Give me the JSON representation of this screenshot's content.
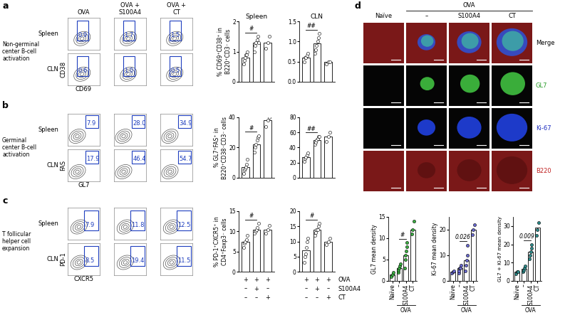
{
  "panel_labels": [
    "a",
    "b",
    "c",
    "d"
  ],
  "flow": {
    "columns": [
      "OVA",
      "OVA +\nS100A4",
      "OVA +\nCT"
    ],
    "rows": [
      "Spleen",
      "CLN"
    ],
    "sections": [
      {
        "title": "Non-germinal\ncenter B-cell\nactivation",
        "x_label": "CD69",
        "y_label": "CD38",
        "gates": [
          [
            0.9,
            1.7,
            1.5
          ],
          [
            0.6,
            1.0,
            0.5
          ]
        ]
      },
      {
        "title": "Germinal\ncenter B-cell\nactivation",
        "x_label": "GL7",
        "y_label": "FAS",
        "gates": [
          [
            7.9,
            28.0,
            34.9
          ],
          [
            17.9,
            46.4,
            54.7
          ]
        ]
      },
      {
        "title": "T follicular\nhelper cell\nexpansion",
        "x_label": "CXCR5",
        "y_label": "PD-1",
        "gates": [
          [
            7.9,
            11.8,
            12.5
          ],
          [
            8.5,
            19.4,
            11.5
          ]
        ]
      }
    ]
  },
  "treatment_table": {
    "rows": [
      {
        "label": "OVA",
        "marks": [
          "+",
          "+",
          "+"
        ]
      },
      {
        "label": "S100A4",
        "marks": [
          "–",
          "+",
          "–"
        ]
      },
      {
        "label": "CT",
        "marks": [
          "–",
          "–",
          "+"
        ]
      }
    ]
  },
  "microscopy": {
    "columns": [
      "Naïve",
      "–",
      "S100A4",
      "CT"
    ],
    "group": "OVA",
    "rows": [
      "Merge",
      "GL7",
      "Ki-67",
      "B220"
    ]
  },
  "chart_data": [
    {
      "type": "bar",
      "title": "Spleen",
      "y_label": "% CD69⁺CD38⁺ in\nB220⁺CD3⁻ cells",
      "categories": [
        null,
        null,
        null
      ],
      "values": [
        0.8,
        1.3,
        1.3
      ],
      "points": [
        [
          0.6,
          0.7,
          0.8,
          0.9,
          0.9,
          1.0
        ],
        [
          1.0,
          1.2,
          1.3,
          1.4,
          1.5,
          1.3
        ],
        [
          1.1,
          1.3,
          1.5
        ]
      ],
      "ylim": [
        0,
        2
      ],
      "yticks": [
        0,
        1,
        2
      ],
      "color": "#ffffff",
      "tick_labels": "y",
      "annotations": [
        {
          "text": "#",
          "from": 0,
          "to": 1
        }
      ]
    },
    {
      "type": "bar",
      "title": "CLN",
      "categories": [
        null,
        null,
        null
      ],
      "values": [
        0.6,
        0.95,
        0.5
      ],
      "points": [
        [
          0.5,
          0.6,
          0.6,
          0.65,
          0.7
        ],
        [
          0.7,
          0.8,
          0.9,
          1.0,
          1.1,
          1.2
        ],
        [
          0.45,
          0.5,
          0.5
        ]
      ],
      "ylim": [
        0.0,
        1.5
      ],
      "yticks": [
        0.0,
        0.5,
        1.0,
        1.5
      ],
      "color": "#ffffff",
      "tick_labels": "y",
      "annotations": [
        {
          "text": "##",
          "from": 0,
          "to": 1
        }
      ]
    },
    {
      "type": "bar",
      "y_label": "% GL7⁺FAS⁺ in\nB220⁺CD38⁻CD3⁻ cells",
      "categories": [
        null,
        null,
        null
      ],
      "values": [
        7,
        22,
        38
      ],
      "points": [
        [
          3,
          5,
          6,
          7,
          9,
          12
        ],
        [
          17,
          20,
          22,
          25,
          27,
          28
        ],
        [
          34,
          38,
          40
        ]
      ],
      "ylim": [
        0,
        40
      ],
      "yticks": [
        0,
        20,
        40
      ],
      "color": "#ffffff",
      "tick_labels": "y",
      "annotations": [
        {
          "text": "#",
          "from": 0,
          "to": 1
        }
      ]
    },
    {
      "type": "bar",
      "categories": [
        null,
        null,
        null
      ],
      "values": [
        27,
        50,
        55
      ],
      "points": [
        [
          22,
          25,
          27,
          30,
          33
        ],
        [
          44,
          47,
          50,
          52,
          55,
          55
        ],
        [
          48,
          55,
          60
        ]
      ],
      "ylim": [
        0,
        80
      ],
      "yticks": [
        0,
        20,
        40,
        60,
        80
      ],
      "color": "#ffffff",
      "tick_labels": "y",
      "annotations": [
        {
          "text": "##",
          "from": 0,
          "to": 1
        }
      ]
    },
    {
      "type": "bar",
      "y_label": "% PD-1⁺CXCR5⁺ in\nCD4⁺Foxp3⁻ cells",
      "categories": [
        null,
        null,
        null
      ],
      "values": [
        7.5,
        10.5,
        10.5
      ],
      "points": [
        [
          6,
          7,
          7.5,
          8,
          9
        ],
        [
          9.5,
          10,
          10.5,
          11,
          12
        ],
        [
          9.5,
          10.5,
          11.5
        ]
      ],
      "ylim": [
        0,
        15
      ],
      "yticks": [
        0,
        5,
        10,
        15
      ],
      "color": "#ffffff",
      "tick_labels": "y",
      "annotations": [
        {
          "text": "#",
          "from": 0,
          "to": 1
        }
      ]
    },
    {
      "type": "bar",
      "categories": [
        null,
        null,
        null
      ],
      "values": [
        7,
        14,
        10
      ],
      "points": [
        [
          3,
          5,
          6,
          8,
          10,
          11
        ],
        [
          12,
          13,
          14,
          14,
          15,
          16
        ],
        [
          9,
          10,
          11
        ]
      ],
      "ylim": [
        0,
        20
      ],
      "yticks": [
        0,
        5,
        10,
        15,
        20
      ],
      "color": "#ffffff",
      "tick_labels": "y",
      "annotations": [
        {
          "text": "#",
          "from": 0,
          "to": 1
        }
      ]
    },
    {
      "type": "bar",
      "y_label": "GL7 mean density",
      "categories": [
        "Naïve",
        "–",
        "S100A4",
        "CT"
      ],
      "x_group": {
        "text": "OVA",
        "from": 1,
        "to": 3
      },
      "values": [
        1.5,
        3,
        6,
        12
      ],
      "points": [
        [
          1,
          1.5,
          2
        ],
        [
          2,
          2.5,
          3,
          3.5,
          4
        ],
        [
          3,
          5,
          6,
          7,
          8,
          9
        ],
        [
          11,
          12,
          14
        ]
      ],
      "ylim": [
        0,
        15
      ],
      "yticks": [
        0,
        5,
        10,
        15
      ],
      "color": "#3cb043",
      "annotations": [
        {
          "text": "#",
          "from": 1,
          "to": 2
        }
      ]
    },
    {
      "type": "bar",
      "y_label": "Ki-67 mean density",
      "categories": [
        "Naïve",
        "–",
        "S100A4",
        "CT"
      ],
      "x_group": {
        "text": "OVA",
        "from": 1,
        "to": 3
      },
      "values": [
        3.5,
        5,
        8,
        20
      ],
      "points": [
        [
          3,
          3.5,
          4
        ],
        [
          3,
          4,
          5,
          5,
          6
        ],
        [
          4,
          6,
          8,
          10,
          14
        ],
        [
          18,
          20,
          22
        ]
      ],
      "ylim": [
        0,
        25
      ],
      "yticks": [
        0,
        10,
        20
      ],
      "color": "#6a6ad0",
      "annotations": [
        {
          "text": "0.026",
          "from": 1,
          "to": 2
        }
      ]
    },
    {
      "type": "bar",
      "y_label": "GL7 + Ki-67 mean density",
      "categories": [
        "Naïve",
        "–",
        "S100A4",
        "CT"
      ],
      "x_group": {
        "text": "OVA",
        "from": 1,
        "to": 3
      },
      "values": [
        5,
        6.5,
        16,
        29
      ],
      "points": [
        [
          4,
          5,
          5
        ],
        [
          5,
          6,
          7,
          8
        ],
        [
          12,
          14,
          16,
          18,
          20
        ],
        [
          25,
          28,
          32
        ]
      ],
      "ylim": [
        0,
        35
      ],
      "yticks": [
        0,
        10,
        20,
        30
      ],
      "color": "#2e8b8b",
      "annotations": [
        {
          "text": "0.009",
          "from": 1,
          "to": 2
        }
      ]
    }
  ]
}
